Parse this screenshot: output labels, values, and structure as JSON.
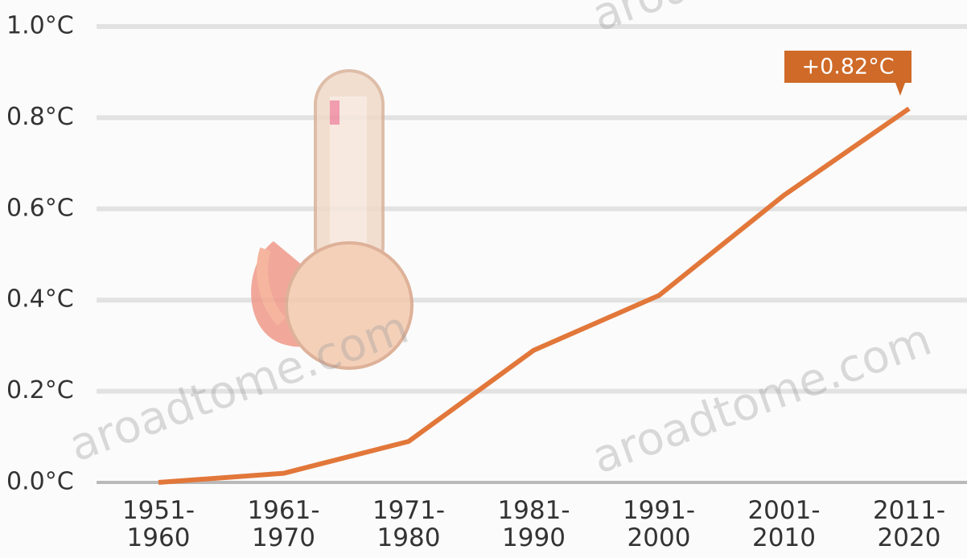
{
  "chart_data": {
    "type": "line",
    "categories": [
      "1951-1960",
      "1961-1970",
      "1971-1980",
      "1981-1990",
      "1991-2000",
      "2001-2010",
      "2011-2020"
    ],
    "values": [
      0.0,
      0.02,
      0.09,
      0.29,
      0.41,
      0.63,
      0.82
    ],
    "color": "#e2773a",
    "annotation": "+0.82°C",
    "annotation_color": "#cf6a28",
    "watermark": "aroadtome.com",
    "ylim": [
      0,
      1.0
    ],
    "yticks": [
      {
        "value": 0,
        "label": "0.0°C"
      },
      {
        "value": 0.2,
        "label": "0.2°C"
      },
      {
        "value": 0.4,
        "label": "0.4°C"
      },
      {
        "value": 0.6,
        "label": "0.6°C"
      },
      {
        "value": 0.8,
        "label": "0.8°C"
      },
      {
        "value": 1.0,
        "label": "1.0°C"
      }
    ],
    "grid": true
  }
}
